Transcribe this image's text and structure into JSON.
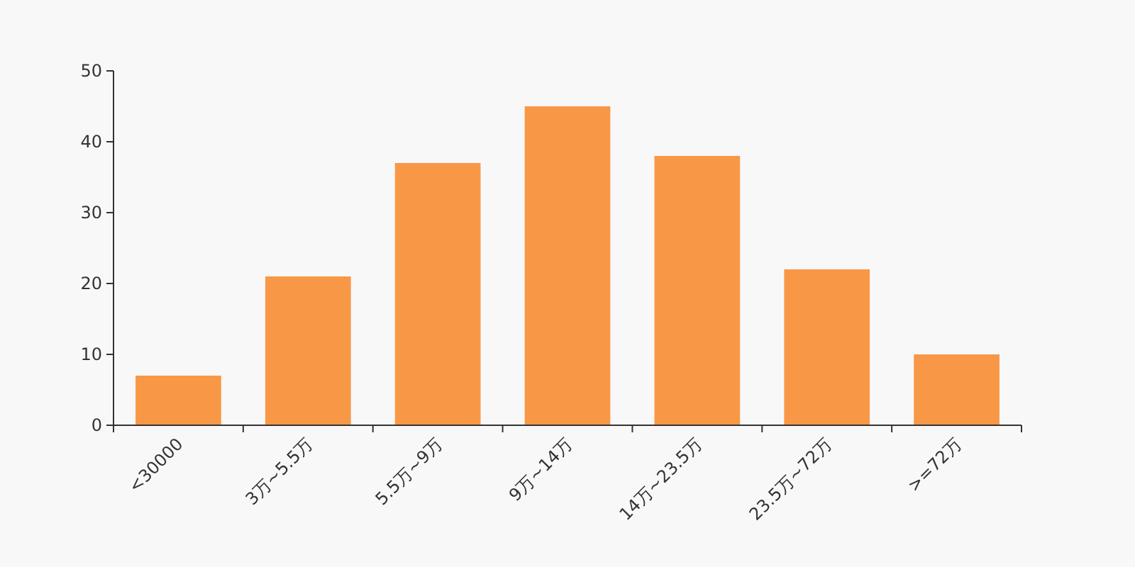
{
  "chart_data": {
    "type": "bar",
    "categories": [
      "<30000",
      "3万~5.5万",
      "5.5万~9万",
      "9万~14万",
      "14万~23.5万",
      "23.5万~72万",
      ">=72万"
    ],
    "values": [
      7,
      21,
      37,
      45,
      38,
      22,
      10
    ],
    "color": "#f89847",
    "ylim": [
      0,
      50
    ],
    "yticks": [
      0,
      10,
      20,
      30,
      40,
      50
    ]
  }
}
